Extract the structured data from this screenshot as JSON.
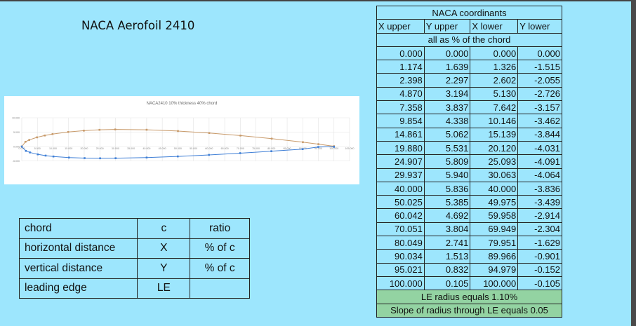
{
  "page_title": "NACA Aerofoil 2410",
  "chart_data": {
    "type": "scatter",
    "title": "NACA2410 10% thickness 40% chord",
    "xlim": [
      0,
      105
    ],
    "ylim": [
      -5,
      10
    ],
    "x_ticks": [
      "0.000",
      "5.000",
      "10.000",
      "15.000",
      "20.000",
      "25.000",
      "30.000",
      "35.000",
      "40.000",
      "45.000",
      "50.000",
      "55.000",
      "60.000",
      "65.000",
      "70.000",
      "75.000",
      "80.000",
      "85.000",
      "90.000",
      "95.000",
      "100.000",
      "105.000"
    ],
    "y_ticks": [
      "10.000",
      "5.000",
      "0.000",
      "-5.000"
    ],
    "grid": true,
    "series": [
      {
        "color": "#c89a6a",
        "x": [
          0,
          1.174,
          2.398,
          4.87,
          7.358,
          9.854,
          14.861,
          19.88,
          24.907,
          29.937,
          40.0,
          50.025,
          60.042,
          70.051,
          80.049,
          90.034,
          95.021,
          100.0
        ],
        "y": [
          0,
          1.639,
          2.297,
          3.194,
          3.837,
          4.338,
          5.062,
          5.531,
          5.809,
          5.94,
          5.836,
          5.385,
          4.692,
          3.804,
          2.741,
          1.513,
          0.832,
          0.105
        ]
      },
      {
        "color": "#3f7fd6",
        "x": [
          0,
          1.326,
          2.602,
          5.13,
          7.642,
          10.146,
          15.139,
          20.12,
          25.093,
          30.063,
          40.0,
          49.975,
          59.958,
          69.949,
          79.951,
          89.966,
          94.979,
          100.0
        ],
        "y": [
          0,
          -1.515,
          -2.055,
          -2.726,
          -3.157,
          -3.462,
          -3.844,
          -4.031,
          -4.091,
          -4.064,
          -3.836,
          -3.439,
          -2.914,
          -2.304,
          -1.629,
          -0.901,
          -0.152,
          -0.105
        ]
      }
    ]
  },
  "naca_table": {
    "title": "NACA coordinants",
    "headers": [
      "X upper",
      "Y upper",
      "X lower",
      "Y lower"
    ],
    "note": "all as % of the chord",
    "rows": [
      [
        "0.000",
        "0.000",
        "0.000",
        "0.000"
      ],
      [
        "1.174",
        "1.639",
        "1.326",
        "-1.515"
      ],
      [
        "2.398",
        "2.297",
        "2.602",
        "-2.055"
      ],
      [
        "4.870",
        "3.194",
        "5.130",
        "-2.726"
      ],
      [
        "7.358",
        "3.837",
        "7.642",
        "-3.157"
      ],
      [
        "9.854",
        "4.338",
        "10.146",
        "-3.462"
      ],
      [
        "14.861",
        "5.062",
        "15.139",
        "-3.844"
      ],
      [
        "19.880",
        "5.531",
        "20.120",
        "-4.031"
      ],
      [
        "24.907",
        "5.809",
        "25.093",
        "-4.091"
      ],
      [
        "29.937",
        "5.940",
        "30.063",
        "-4.064"
      ],
      [
        "40.000",
        "5.836",
        "40.000",
        "-3.836"
      ],
      [
        "50.025",
        "5.385",
        "49.975",
        "-3.439"
      ],
      [
        "60.042",
        "4.692",
        "59.958",
        "-2.914"
      ],
      [
        "70.051",
        "3.804",
        "69.949",
        "-2.304"
      ],
      [
        "80.049",
        "2.741",
        "79.951",
        "-1.629"
      ],
      [
        "90.034",
        "1.513",
        "89.966",
        "-0.901"
      ],
      [
        "95.021",
        "0.832",
        "94.979",
        "-0.152"
      ],
      [
        "100.000",
        "0.105",
        "100.000",
        "-0.105"
      ]
    ],
    "footer1": "LE radius equals 1.10%",
    "footer2": "Slope of radius through LE equals 0.05"
  },
  "legend_table": {
    "rows": [
      [
        "chord",
        "c",
        "ratio"
      ],
      [
        "horizontal distance",
        "X",
        "% of c"
      ],
      [
        "vertical distance",
        "Y",
        "% of c"
      ],
      [
        "leading edge",
        "LE",
        ""
      ]
    ]
  }
}
